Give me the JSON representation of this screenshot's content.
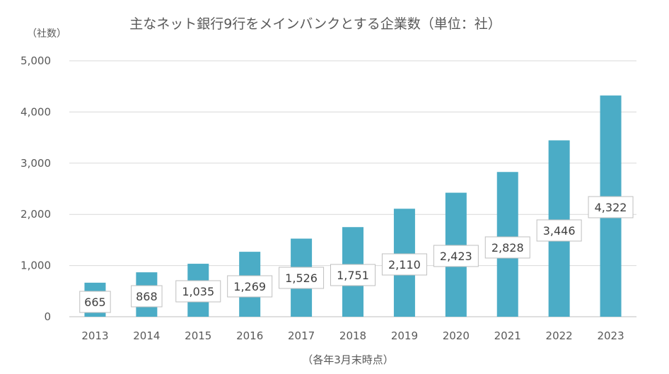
{
  "chart_data": {
    "type": "bar",
    "title": "主なネット銀行9行をメインバンクとする企業数（単位：社）",
    "ylabel": "（社数）",
    "xlabel": "（各年3月末時点）",
    "categories": [
      "2013",
      "2014",
      "2015",
      "2016",
      "2017",
      "2018",
      "2019",
      "2020",
      "2021",
      "2022",
      "2023"
    ],
    "values": [
      665,
      868,
      1035,
      1269,
      1526,
      1751,
      2110,
      2423,
      2828,
      3446,
      4322
    ],
    "value_labels": [
      "665",
      "868",
      "1,035",
      "1,269",
      "1,526",
      "1,751",
      "2,110",
      "2,423",
      "2,828",
      "3,446",
      "4,322"
    ],
    "ylim": [
      0,
      5000
    ],
    "yticks": [
      0,
      1000,
      2000,
      3000,
      4000,
      5000
    ],
    "ytick_labels": [
      "0",
      "1,000",
      "2,000",
      "3,000",
      "4,000",
      "5,000"
    ],
    "grid": true,
    "bar_color": "#4bacc6"
  }
}
